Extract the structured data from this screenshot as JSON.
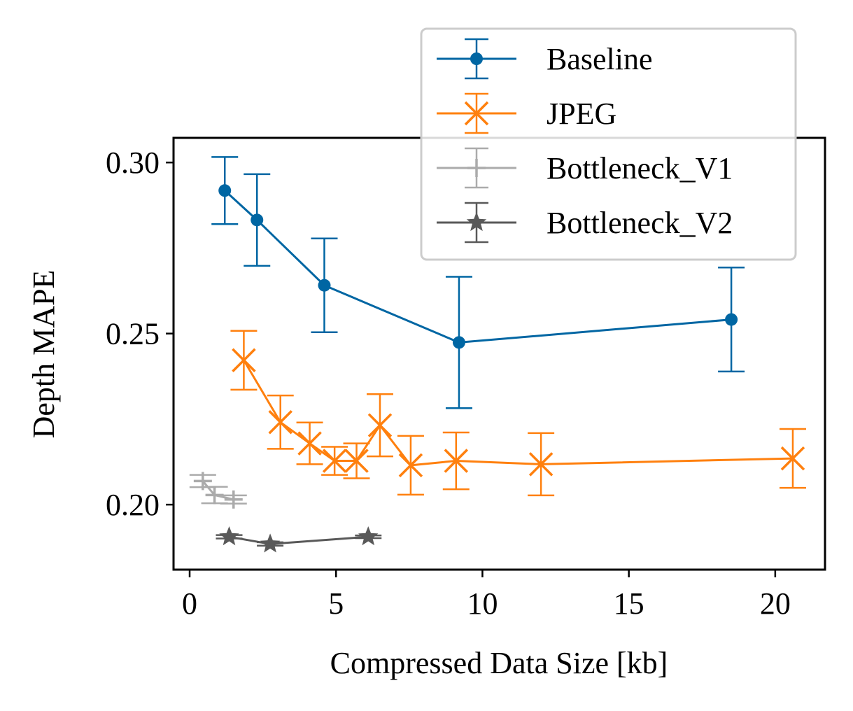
{
  "chart_data": {
    "type": "line",
    "title": "",
    "xlabel": "Compressed Data Size [kb]",
    "ylabel": "Depth MAPE",
    "xlim": [
      -0.55,
      21.7
    ],
    "ylim": [
      0.181,
      0.3072
    ],
    "xticks": [
      0,
      5,
      10,
      15,
      20
    ],
    "xtick_labels": [
      "0",
      "5",
      "10",
      "15",
      "20"
    ],
    "yticks": [
      0.2,
      0.25,
      0.3
    ],
    "ytick_labels": [
      "0.20",
      "0.25",
      "0.30"
    ],
    "grid": false,
    "legend_position": "top-right",
    "series": [
      {
        "name": "Baseline",
        "color": "#0066a3",
        "marker": "dot",
        "x": [
          1.2,
          2.3,
          4.6,
          9.2,
          18.5
        ],
        "y": [
          0.2918,
          0.2832,
          0.2641,
          0.2474,
          0.2541
        ],
        "err": [
          0.0098,
          0.0134,
          0.0137,
          0.0192,
          0.0152
        ]
      },
      {
        "name": "JPEG",
        "color": "#ff800e",
        "marker": "x",
        "x": [
          1.85,
          3.1,
          4.1,
          4.95,
          5.7,
          6.5,
          7.55,
          9.1,
          12.0,
          20.6
        ],
        "y": [
          0.2422,
          0.2241,
          0.2179,
          0.2128,
          0.2128,
          0.2232,
          0.2115,
          0.2128,
          0.2118,
          0.2135
        ],
        "err": [
          0.0086,
          0.0078,
          0.0061,
          0.0041,
          0.0051,
          0.0091,
          0.0086,
          0.0083,
          0.0091,
          0.0086
        ]
      },
      {
        "name": "Bottleneck_V1",
        "color": "#ababab",
        "marker": "plus",
        "x": [
          0.45,
          0.85,
          1.5
        ],
        "y": [
          0.2069,
          0.2028,
          0.2015
        ],
        "err": [
          0.0018,
          0.0024,
          0.0012
        ]
      },
      {
        "name": "Bottleneck_V2",
        "color": "#595959",
        "marker": "star",
        "x": [
          1.35,
          2.75,
          6.1
        ],
        "y": [
          0.1906,
          0.1885,
          0.1906
        ],
        "err": [
          0.0005,
          0.0005,
          0.0004
        ]
      }
    ]
  }
}
